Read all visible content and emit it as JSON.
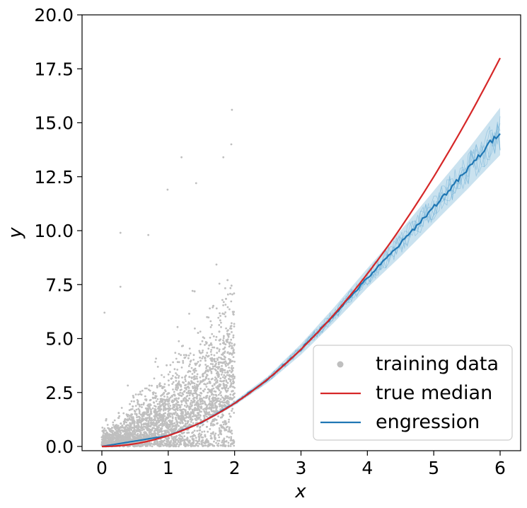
{
  "chart_data": {
    "type": "scatter",
    "xlabel": "x",
    "ylabel": "y",
    "xlim": [
      -0.3,
      6.3
    ],
    "ylim": [
      -0.3,
      20.0
    ],
    "x_ticks": [
      0,
      1,
      2,
      3,
      4,
      5,
      6
    ],
    "x_tick_labels": [
      "0",
      "1",
      "2",
      "3",
      "4",
      "5",
      "6"
    ],
    "y_ticks": [
      0.0,
      2.5,
      5.0,
      7.5,
      10.0,
      12.5,
      15.0,
      17.5,
      20.0
    ],
    "y_tick_labels": [
      "0.0",
      "2.5",
      "5.0",
      "7.5",
      "10.0",
      "12.5",
      "15.0",
      "17.5",
      "20.0"
    ],
    "grid": false,
    "legend_position": "bottom-right",
    "series": [
      {
        "name": "training data",
        "type": "scatter",
        "color": "#bfbfbf",
        "x_range": [
          0,
          2
        ],
        "sample_outliers": [
          {
            "x": 1.96,
            "y": 15.6
          },
          {
            "x": 1.95,
            "y": 14.0
          },
          {
            "x": 1.83,
            "y": 13.4
          },
          {
            "x": 1.2,
            "y": 13.4
          },
          {
            "x": 1.42,
            "y": 12.2
          },
          {
            "x": 0.99,
            "y": 11.9
          },
          {
            "x": 0.28,
            "y": 9.9
          },
          {
            "x": 0.7,
            "y": 9.8
          },
          {
            "x": 0.28,
            "y": 7.4
          },
          {
            "x": 0.04,
            "y": 6.2
          }
        ]
      },
      {
        "name": "true median",
        "type": "line",
        "color": "#d62728",
        "x": [
          0,
          0.5,
          1,
          1.5,
          2,
          2.5,
          3,
          3.5,
          4,
          4.5,
          5,
          5.5,
          6
        ],
        "y": [
          0,
          0.25,
          0.5,
          1.1,
          2.0,
          3.1,
          4.5,
          6.1,
          8.0,
          10.1,
          12.5,
          15.1,
          18.0
        ]
      },
      {
        "name": "engression",
        "type": "line",
        "color": "#1f77b4",
        "band_color": "#9ecae1",
        "x": [
          0,
          0.5,
          1,
          1.5,
          2,
          2.5,
          3,
          3.5,
          4,
          4.5,
          5,
          5.5,
          6
        ],
        "y": [
          0,
          0.25,
          0.5,
          1.1,
          2.0,
          3.1,
          4.5,
          6.1,
          7.8,
          9.4,
          11.1,
          12.8,
          14.6
        ],
        "band_halfwidth": [
          0,
          0,
          0,
          0.05,
          0.1,
          0.15,
          0.25,
          0.35,
          0.45,
          0.6,
          0.75,
          0.9,
          1.1
        ]
      }
    ]
  }
}
